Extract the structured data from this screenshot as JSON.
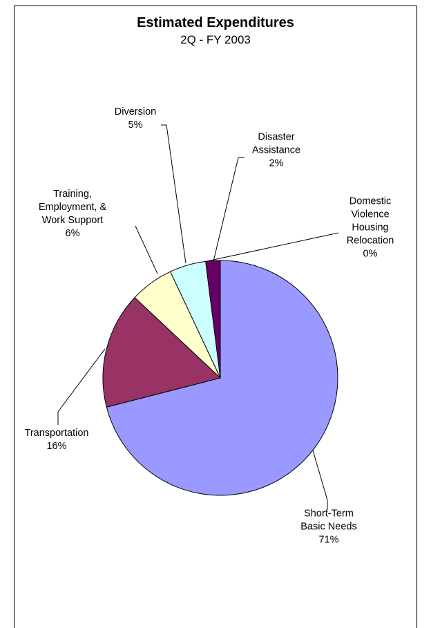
{
  "chart_data": {
    "type": "pie",
    "title": "Estimated Expenditures",
    "subtitle": "2Q - FY 2003",
    "categories": [
      "Short-Term\nBasic Needs",
      "Transportation",
      "Training,\nEmployment, &\nWork Support",
      "Diversion",
      "Disaster\nAssistance",
      "Domestic\nViolence\nHousing\nRelocation"
    ],
    "values": [
      71,
      16,
      6,
      5,
      2,
      0
    ],
    "value_labels": [
      "71%",
      "16%",
      "6%",
      "5%",
      "2%",
      "0%"
    ],
    "colors": [
      "#9999ff",
      "#993366",
      "#ffffcc",
      "#ccffff",
      "#660066",
      "#ff8080"
    ]
  }
}
